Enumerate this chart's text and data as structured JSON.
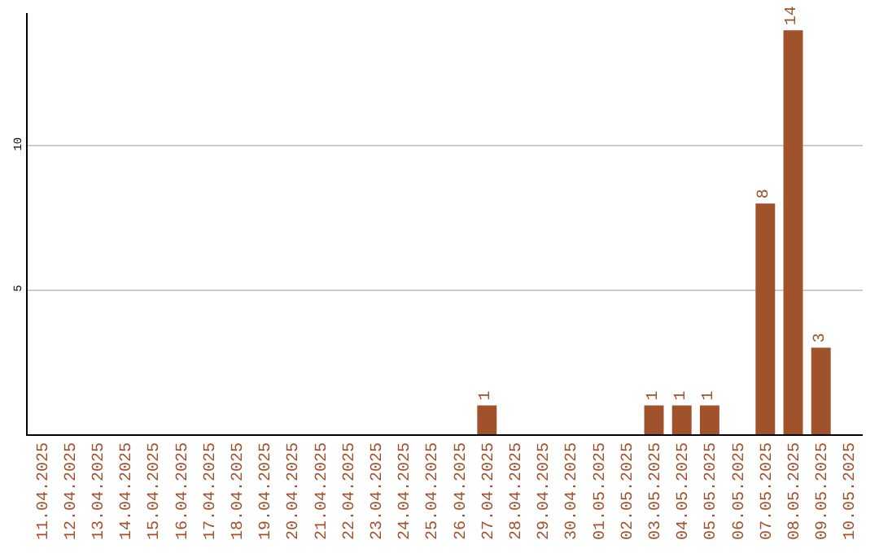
{
  "chart_data": {
    "type": "bar",
    "categories": [
      "11.04.2025",
      "12.04.2025",
      "13.04.2025",
      "14.04.2025",
      "15.04.2025",
      "16.04.2025",
      "17.04.2025",
      "18.04.2025",
      "19.04.2025",
      "20.04.2025",
      "21.04.2025",
      "22.04.2025",
      "23.04.2025",
      "24.04.2025",
      "25.04.2025",
      "26.04.2025",
      "27.04.2025",
      "28.04.2025",
      "29.04.2025",
      "30.04.2025",
      "01.05.2025",
      "02.05.2025",
      "03.05.2025",
      "04.05.2025",
      "05.05.2025",
      "06.05.2025",
      "07.05.2025",
      "08.05.2025",
      "09.05.2025",
      "10.05.2025"
    ],
    "values": [
      0,
      0,
      0,
      0,
      0,
      0,
      0,
      0,
      0,
      0,
      0,
      0,
      0,
      0,
      0,
      0,
      1,
      0,
      0,
      0,
      0,
      0,
      1,
      1,
      1,
      0,
      8,
      14,
      3,
      0
    ],
    "value_labels": [
      null,
      null,
      null,
      null,
      null,
      null,
      null,
      null,
      null,
      null,
      null,
      null,
      null,
      null,
      null,
      null,
      "1",
      null,
      null,
      null,
      null,
      null,
      "1",
      "1",
      "1",
      null,
      "8",
      "14",
      "3",
      null
    ],
    "color": "#a0522d",
    "ylim": [
      0,
      14.6
    ],
    "yticks": [
      5,
      10
    ],
    "grid": "y",
    "legend": false
  }
}
